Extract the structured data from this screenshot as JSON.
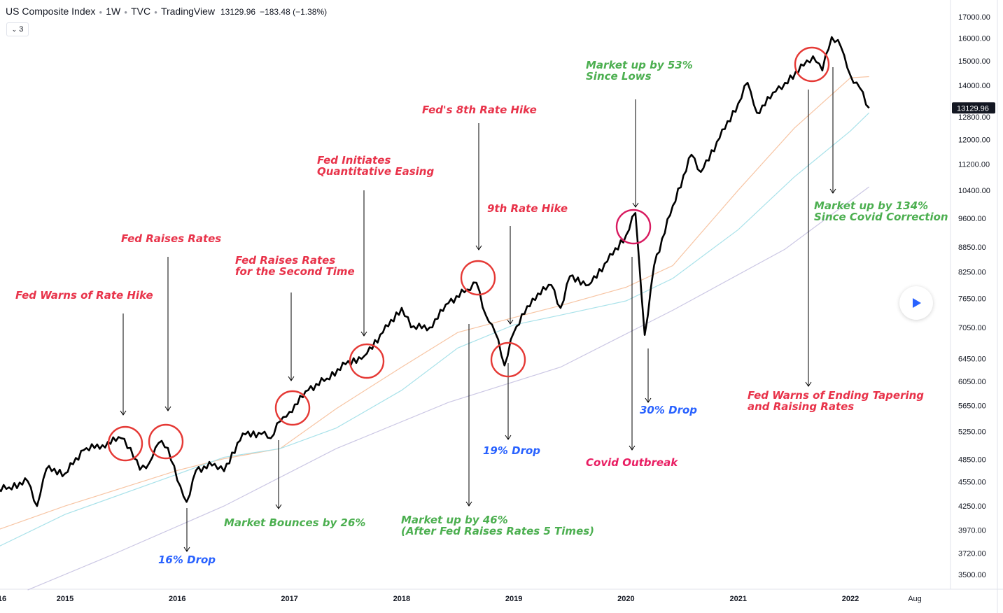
{
  "header": {
    "symbol": "US Composite Index",
    "interval": "1W",
    "exchange": "TVC",
    "source": "TradingView",
    "price": "13129.96",
    "change": "−183.48 (−1.38%)"
  },
  "indicator_toggle": {
    "label": "3",
    "icon": "chevron-down-icon"
  },
  "play_button": {
    "icon": "play-icon"
  },
  "colors": {
    "price_line": "#000000",
    "ma_orange": "#f7c5a4",
    "ma_cyan": "#a9e2ea",
    "ma_purple": "#cbc7e4",
    "red_text": "#e8334a",
    "green_text": "#4caf50",
    "blue_text": "#2962ff",
    "pink_text": "#e91e63",
    "circle_red": "#e53935",
    "circle_pink": "#d81b60"
  },
  "chart_data": {
    "type": "line",
    "title": "US Composite Index · 1W · TVC",
    "scale": "log",
    "ylim": [
      3350,
      17500
    ],
    "y_ticks": [
      "17000.00",
      "16000.00",
      "15000.00",
      "14000.00",
      "12800.00",
      "12000.00",
      "11200.00",
      "10400.00",
      "9600.00",
      "8850.00",
      "8250.00",
      "7650.00",
      "7050.00",
      "6450.00",
      "6050.00",
      "5650.00",
      "5250.00",
      "4850.00",
      "4550.00",
      "4250.00",
      "3970.00",
      "3720.00",
      "3500.00"
    ],
    "x_ticks": [
      "16",
      "2015",
      "2016",
      "2017",
      "2018",
      "2019",
      "2020",
      "2021",
      "2022",
      "Aug"
    ],
    "last_price_label": "13129.96",
    "series": [
      {
        "name": "US Composite Index",
        "color": "#000000",
        "points": [
          [
            "2014-03",
            4250
          ],
          [
            "2014-05",
            4420
          ],
          [
            "2014-07",
            4480
          ],
          [
            "2014-09",
            4560
          ],
          [
            "2014-10",
            4250
          ],
          [
            "2014-11",
            4720
          ],
          [
            "2015-01",
            4660
          ],
          [
            "2015-03",
            4980
          ],
          [
            "2015-05",
            5050
          ],
          [
            "2015-07",
            5150
          ],
          [
            "2015-08",
            5010
          ],
          [
            "2015-09",
            4710
          ],
          [
            "2015-10",
            4800
          ],
          [
            "2015-11",
            5080
          ],
          [
            "2015-12",
            5010
          ],
          [
            "2016-01",
            4570
          ],
          [
            "2016-02",
            4300
          ],
          [
            "2016-03",
            4700
          ],
          [
            "2016-05",
            4790
          ],
          [
            "2016-06",
            4690
          ],
          [
            "2016-08",
            5220
          ],
          [
            "2016-10",
            5210
          ],
          [
            "2016-11",
            5150
          ],
          [
            "2016-12",
            5400
          ],
          [
            "2017-01",
            5550
          ],
          [
            "2017-03",
            5900
          ],
          [
            "2017-05",
            6100
          ],
          [
            "2017-07",
            6350
          ],
          [
            "2017-09",
            6500
          ],
          [
            "2017-11",
            6950
          ],
          [
            "2018-01",
            7450
          ],
          [
            "2018-02",
            7050
          ],
          [
            "2018-04",
            7050
          ],
          [
            "2018-06",
            7550
          ],
          [
            "2018-08",
            7850
          ],
          [
            "2018-09",
            8000
          ],
          [
            "2018-10",
            7300
          ],
          [
            "2018-11",
            6950
          ],
          [
            "2018-12",
            6330
          ],
          [
            "2019-01",
            6950
          ],
          [
            "2019-03",
            7650
          ],
          [
            "2019-05",
            7950
          ],
          [
            "2019-06",
            7450
          ],
          [
            "2019-07",
            8150
          ],
          [
            "2019-09",
            7950
          ],
          [
            "2019-11",
            8500
          ],
          [
            "2020-01",
            9150
          ],
          [
            "2020-02",
            9750
          ],
          [
            "2020-03",
            6900
          ],
          [
            "2020-04",
            8400
          ],
          [
            "2020-06",
            9950
          ],
          [
            "2020-08",
            11500
          ],
          [
            "2020-09",
            10950
          ],
          [
            "2020-11",
            12050
          ],
          [
            "2021-01",
            13300
          ],
          [
            "2021-02",
            14100
          ],
          [
            "2021-03",
            12950
          ],
          [
            "2021-05",
            13750
          ],
          [
            "2021-06",
            14100
          ],
          [
            "2021-08",
            14800
          ],
          [
            "2021-09",
            15200
          ],
          [
            "2021-10",
            14600
          ],
          [
            "2021-11",
            16050
          ],
          [
            "2021-12",
            15600
          ],
          [
            "2022-01",
            14400
          ],
          [
            "2022-02",
            13900
          ],
          [
            "2022-03",
            13129.96
          ]
        ]
      },
      {
        "name": "MA",
        "color": "#f7c5a4",
        "points": [
          [
            "2014-03",
            3870
          ],
          [
            "2015-01",
            4250
          ],
          [
            "2016-01",
            4700
          ],
          [
            "2016-06",
            4860
          ],
          [
            "2016-12",
            5000
          ],
          [
            "2017-06",
            5600
          ],
          [
            "2018-01",
            6300
          ],
          [
            "2018-07",
            6950
          ],
          [
            "2019-01",
            7250
          ],
          [
            "2019-06",
            7500
          ],
          [
            "2020-01",
            7900
          ],
          [
            "2020-06",
            8400
          ],
          [
            "2021-01",
            10400
          ],
          [
            "2021-07",
            12400
          ],
          [
            "2022-01",
            14300
          ],
          [
            "2022-03",
            14350
          ]
        ]
      },
      {
        "name": "MA",
        "color": "#a9e2ea",
        "points": [
          [
            "2014-03",
            3650
          ],
          [
            "2015-01",
            4150
          ],
          [
            "2016-01",
            4650
          ],
          [
            "2016-06",
            4880
          ],
          [
            "2016-12",
            5000
          ],
          [
            "2017-06",
            5300
          ],
          [
            "2018-01",
            5900
          ],
          [
            "2018-07",
            6650
          ],
          [
            "2019-01",
            7100
          ],
          [
            "2019-06",
            7300
          ],
          [
            "2020-01",
            7600
          ],
          [
            "2020-06",
            8100
          ],
          [
            "2021-01",
            9300
          ],
          [
            "2021-07",
            10800
          ],
          [
            "2022-01",
            12300
          ],
          [
            "2022-03",
            12950
          ]
        ]
      },
      {
        "name": "MA",
        "color": "#cbc7e4",
        "points": [
          [
            "2014-09",
            3350
          ],
          [
            "2015-06",
            3700
          ],
          [
            "2016-06",
            4250
          ],
          [
            "2017-06",
            5000
          ],
          [
            "2018-06",
            5700
          ],
          [
            "2019-06",
            6300
          ],
          [
            "2020-06",
            7400
          ],
          [
            "2021-06",
            8800
          ],
          [
            "2022-03",
            10500
          ]
        ]
      }
    ]
  },
  "annotations": [
    {
      "id": "fed-warns-rate-hike",
      "lines": [
        "Fed Warns of Rate Hike"
      ],
      "color": "red"
    },
    {
      "id": "fed-raises-rates",
      "lines": [
        "Fed Raises Rates"
      ],
      "color": "red"
    },
    {
      "id": "fed-raises-second",
      "lines": [
        "Fed Raises Rates",
        "for the Second Time"
      ],
      "color": "red"
    },
    {
      "id": "fed-qe",
      "lines": [
        "Fed Initiates",
        "Quantitative Easing"
      ],
      "color": "red"
    },
    {
      "id": "fed-8th-hike",
      "lines": [
        "Fed's 8th Rate Hike"
      ],
      "color": "red"
    },
    {
      "id": "9th-rate-hike",
      "lines": [
        "9th Rate Hike"
      ],
      "color": "red"
    },
    {
      "id": "market-up-53",
      "lines": [
        "Market up by 53%",
        "Since Lows"
      ],
      "color": "green"
    },
    {
      "id": "market-up-134",
      "lines": [
        "Market up by 134%",
        "Since Covid Correction"
      ],
      "color": "green"
    },
    {
      "id": "fed-ending-tapering",
      "lines": [
        "Fed Warns of Ending Tapering",
        "and Raising Rates"
      ],
      "color": "red"
    },
    {
      "id": "30-drop",
      "lines": [
        "30% Drop"
      ],
      "color": "blue"
    },
    {
      "id": "19-drop",
      "lines": [
        "19% Drop"
      ],
      "color": "blue"
    },
    {
      "id": "covid-outbreak",
      "lines": [
        "Covid Outbreak"
      ],
      "color": "pink"
    },
    {
      "id": "market-bounces-26",
      "lines": [
        "Market Bounces by 26%"
      ],
      "color": "green"
    },
    {
      "id": "market-up-46",
      "lines": [
        "Market up by 46%",
        "(After Fed Raises Rates 5 Times)"
      ],
      "color": "green"
    },
    {
      "id": "16-drop",
      "lines": [
        "16% Drop"
      ],
      "color": "blue"
    }
  ]
}
